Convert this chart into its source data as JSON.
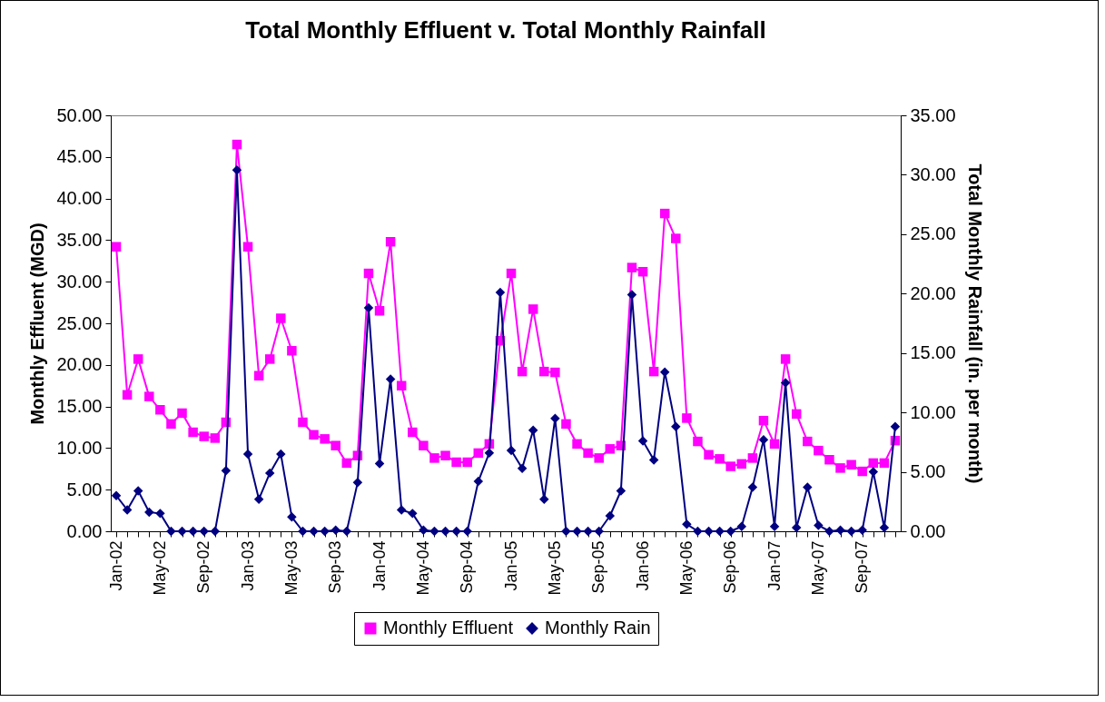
{
  "chart_data": {
    "type": "line",
    "title": "Total Monthly Effluent v. Total Monthly Rainfall",
    "ylabel": "Monthly Effluent (MGD)",
    "y2label": "Total Monthly Rainfall (in. per month)",
    "categories": [
      "Jan-02",
      null,
      null,
      null,
      "May-02",
      null,
      null,
      null,
      "Sep-02",
      null,
      null,
      null,
      "Jan-03",
      null,
      null,
      null,
      "May-03",
      null,
      null,
      null,
      "Sep-03",
      null,
      null,
      null,
      "Jan-04",
      null,
      null,
      null,
      "May-04",
      null,
      null,
      null,
      "Sep-04",
      null,
      null,
      null,
      "Jan-05",
      null,
      null,
      null,
      "May-05",
      null,
      null,
      null,
      "Sep-05",
      null,
      null,
      null,
      "Jan-06",
      null,
      null,
      null,
      "May-06",
      null,
      null,
      null,
      "Sep-06",
      null,
      null,
      null,
      "Jan-07",
      null,
      null,
      null,
      "May-07",
      null,
      null,
      null,
      "Sep-07",
      null,
      null,
      null
    ],
    "series": [
      {
        "name": "Monthly Effluent",
        "color": "#ff00ff",
        "marker": "square",
        "values": [
          34.2,
          16.4,
          20.7,
          16.2,
          14.6,
          12.9,
          14.2,
          11.9,
          11.4,
          11.2,
          13.1,
          46.5,
          34.2,
          18.7,
          20.7,
          25.6,
          21.7,
          13.1,
          11.6,
          11.1,
          10.3,
          8.2,
          9.1,
          31.0,
          26.5,
          34.8,
          17.5,
          11.9,
          10.3,
          8.8,
          9.1,
          8.3,
          8.3,
          9.4,
          10.5,
          22.9,
          31.0,
          19.2,
          26.7,
          19.2,
          19.1,
          12.9,
          10.5,
          9.4,
          8.8,
          9.9,
          10.3,
          31.7,
          31.2,
          19.2,
          38.2,
          35.2,
          13.6,
          10.8,
          9.2,
          8.7,
          7.8,
          8.1,
          8.8,
          13.3,
          10.5,
          20.7,
          14.1,
          10.8,
          9.7,
          8.6,
          7.6,
          8.0,
          7.2,
          8.2,
          8.2,
          10.9
        ]
      },
      {
        "name": "Monthly Rain",
        "color": "#000080",
        "marker": "diamond",
        "axis": "y2",
        "values": [
          3.0,
          1.8,
          3.4,
          1.6,
          1.5,
          0,
          0,
          0,
          0,
          0,
          5.1,
          30.4,
          6.5,
          2.7,
          4.9,
          6.5,
          1.2,
          0,
          0,
          0,
          0.1,
          0,
          4.1,
          18.8,
          5.7,
          12.8,
          1.8,
          1.5,
          0.1,
          0,
          0,
          0,
          0,
          4.2,
          6.6,
          20.1,
          6.8,
          5.3,
          8.5,
          2.7,
          9.5,
          0,
          0,
          0,
          0,
          1.3,
          3.4,
          19.9,
          7.6,
          6.0,
          13.4,
          8.8,
          0.6,
          0,
          0,
          0,
          0,
          0.4,
          3.7,
          7.7,
          0.4,
          12.5,
          0.3,
          3.7,
          0.5,
          0,
          0.1,
          0,
          0.1,
          5.0,
          0.3,
          8.8
        ]
      }
    ],
    "ylim": [
      0,
      50
    ],
    "yticks": [
      {
        "value": 0,
        "label": "0.00"
      },
      {
        "value": 5,
        "label": "5.00"
      },
      {
        "value": 10,
        "label": "10.00"
      },
      {
        "value": 15,
        "label": "15.00"
      },
      {
        "value": 20,
        "label": "20.00"
      },
      {
        "value": 25,
        "label": "25.00"
      },
      {
        "value": 30,
        "label": "30.00"
      },
      {
        "value": 35,
        "label": "35.00"
      },
      {
        "value": 40,
        "label": "40.00"
      },
      {
        "value": 45,
        "label": "45.00"
      },
      {
        "value": 50,
        "label": "50.00"
      }
    ],
    "y2lim": [
      0,
      35
    ],
    "y2ticks": [
      {
        "value": 0,
        "label": "0.00"
      },
      {
        "value": 5,
        "label": "5.00"
      },
      {
        "value": 10,
        "label": "10.00"
      },
      {
        "value": 15,
        "label": "15.00"
      },
      {
        "value": 20,
        "label": "20.00"
      },
      {
        "value": 25,
        "label": "25.00"
      },
      {
        "value": 30,
        "label": "30.00"
      },
      {
        "value": 35,
        "label": "35.00"
      }
    ],
    "legend": "bottom"
  }
}
